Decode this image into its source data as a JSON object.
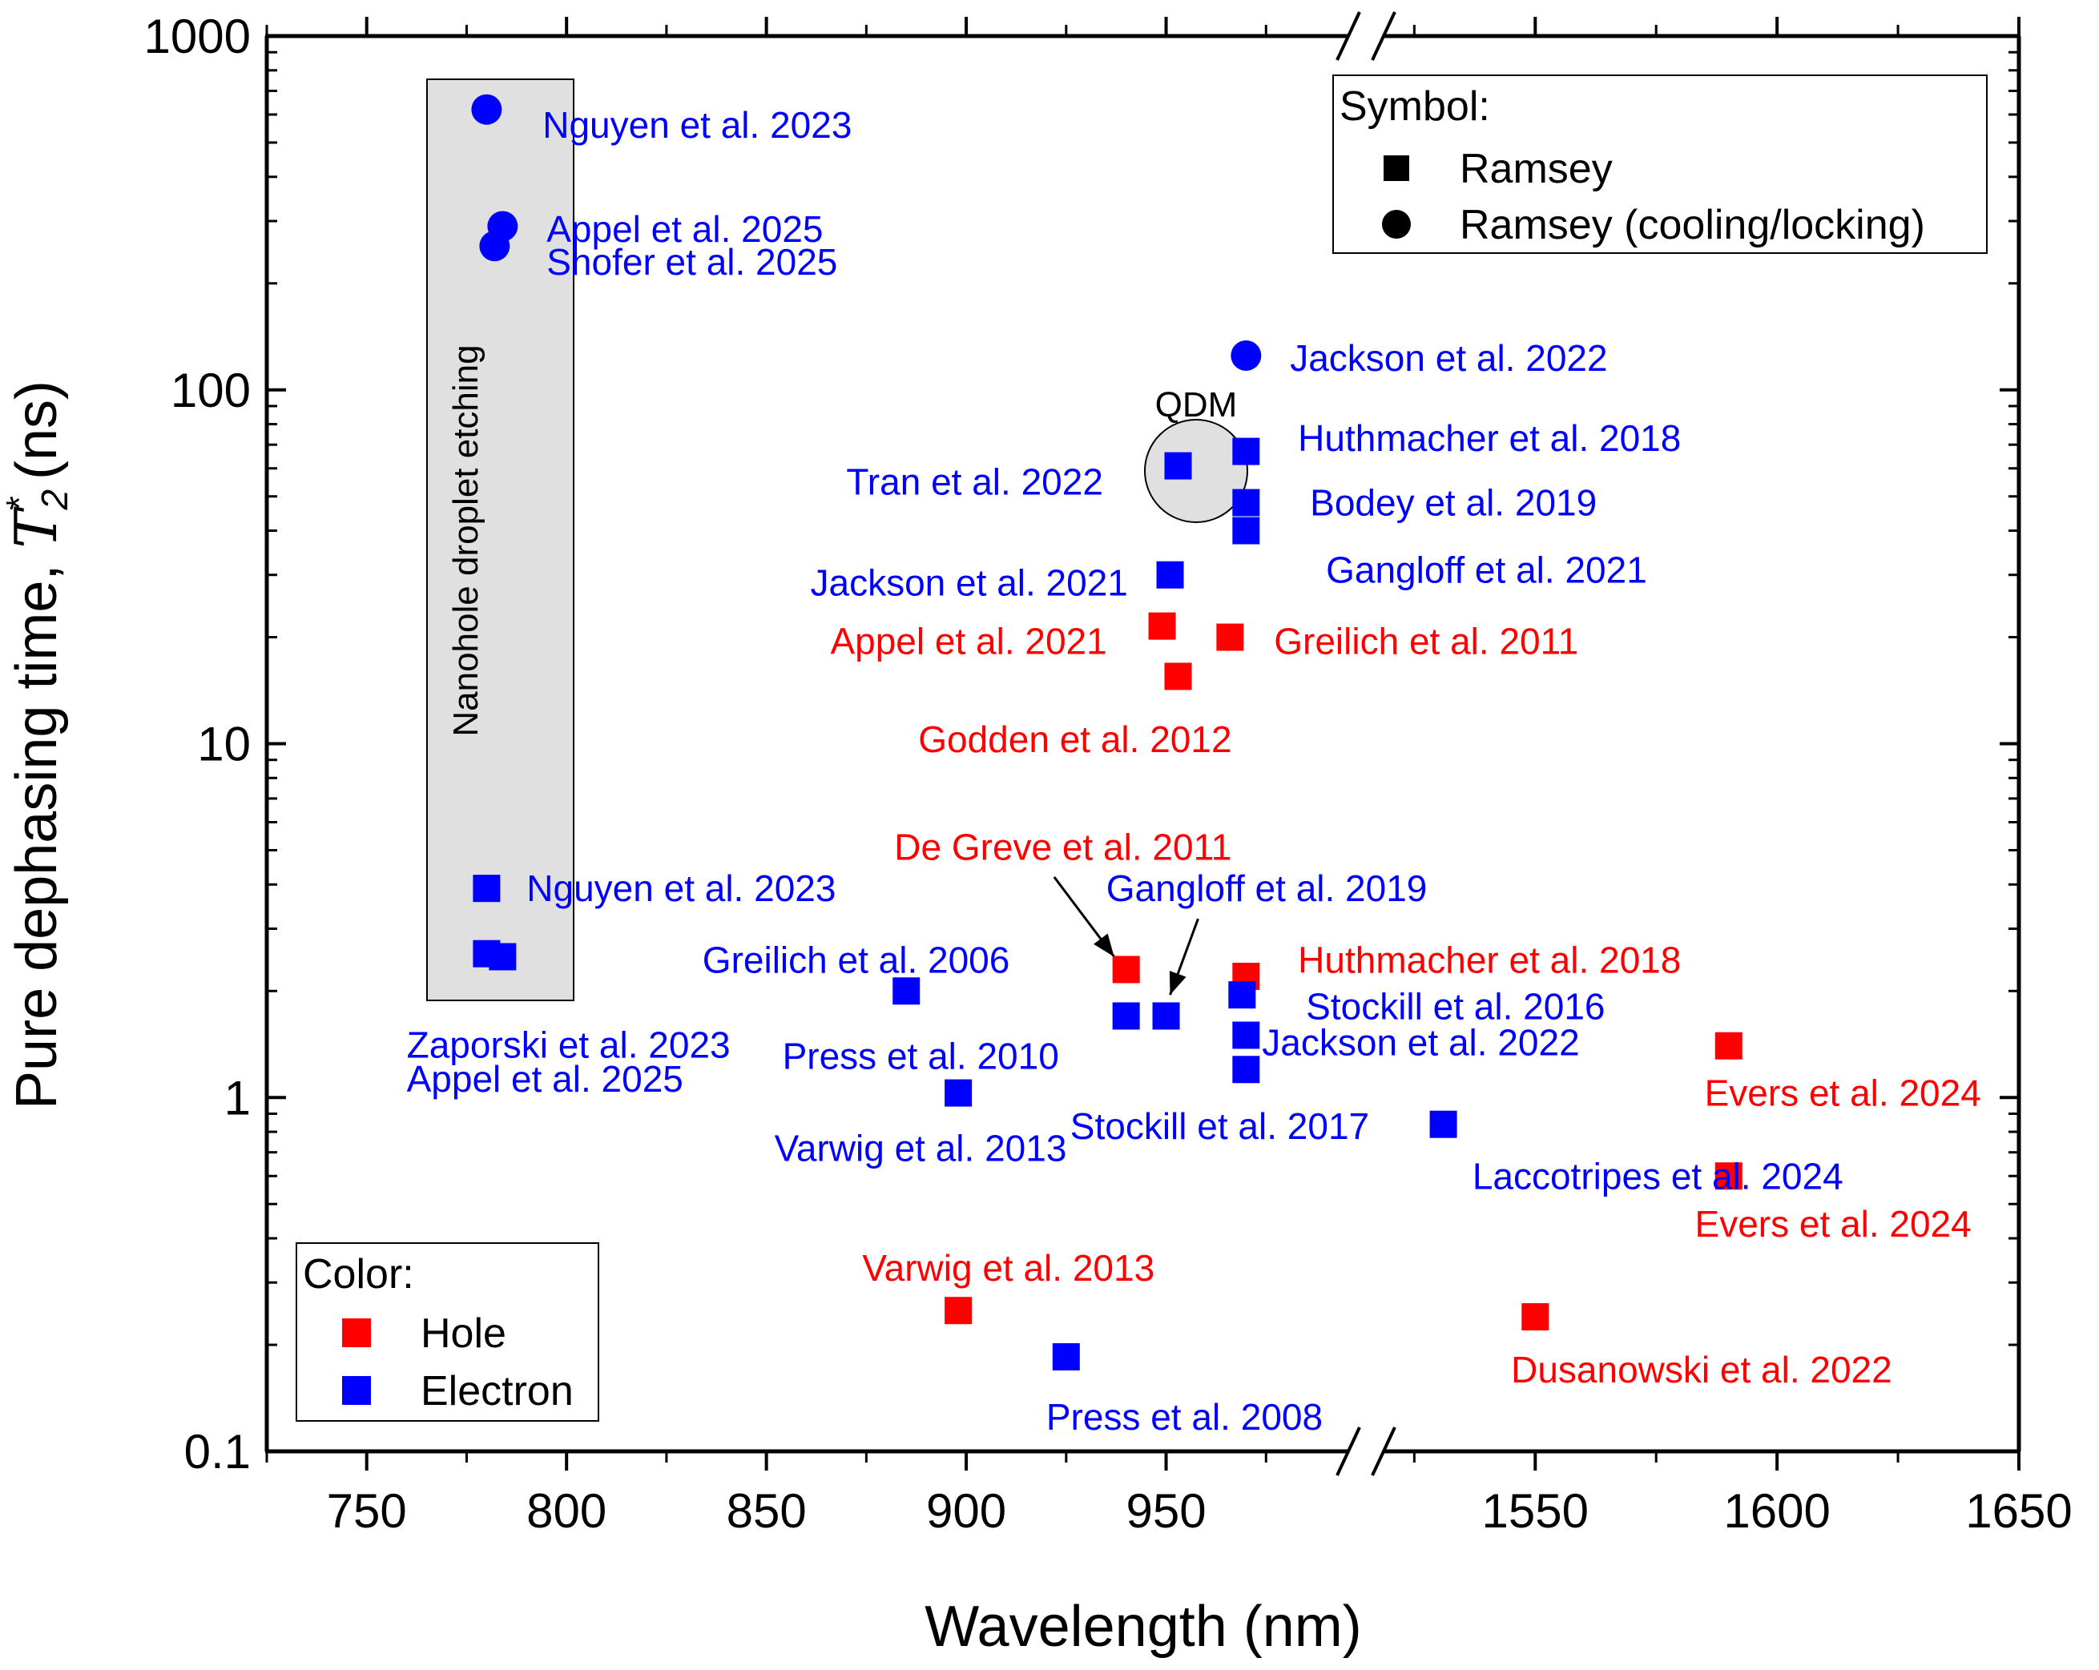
{
  "chart_data": {
    "type": "scatter",
    "xlabel": "Wavelength (nm)",
    "ylabel": "Pure dephasing time, ",
    "ylabel_symbol": "T",
    "ylabel_sub": "2",
    "ylabel_sup": "*",
    "ylabel_unit": " (ns)",
    "yscale": "log",
    "ylim": [
      0.1,
      1000
    ],
    "yticks": [
      "0.1",
      "1",
      "10",
      "100",
      "1000"
    ],
    "x_segments": [
      {
        "range": [
          725,
          1000
        ],
        "ticks": [
          "750",
          "800",
          "850",
          "900",
          "950"
        ]
      },
      {
        "range": [
          1515,
          1650
        ],
        "ticks": [
          "1550",
          "1600",
          "1650"
        ]
      }
    ],
    "colors": {
      "hole": "#ff0000",
      "electron": "#0000ff",
      "region": "#e0e0e0"
    },
    "region_label": "Nanohole droplet etching",
    "qdm_label": "QDM",
    "points": [
      {
        "x": 780,
        "y": 620,
        "carrier": "electron",
        "marker": "circle"
      },
      {
        "x": 784,
        "y": 290,
        "carrier": "electron",
        "marker": "circle"
      },
      {
        "x": 782,
        "y": 255,
        "carrier": "electron",
        "marker": "circle"
      },
      {
        "x": 780,
        "y": 3.9,
        "carrier": "electron",
        "marker": "square"
      },
      {
        "x": 780,
        "y": 2.55,
        "carrier": "electron",
        "marker": "square"
      },
      {
        "x": 784,
        "y": 2.5,
        "carrier": "electron",
        "marker": "square"
      },
      {
        "x": 970,
        "y": 125,
        "carrier": "electron",
        "marker": "circle"
      },
      {
        "x": 970,
        "y": 67,
        "carrier": "electron",
        "marker": "square"
      },
      {
        "x": 953,
        "y": 61,
        "carrier": "electron",
        "marker": "square"
      },
      {
        "x": 970,
        "y": 48,
        "carrier": "electron",
        "marker": "square"
      },
      {
        "x": 970,
        "y": 40,
        "carrier": "electron",
        "marker": "square"
      },
      {
        "x": 951,
        "y": 30,
        "carrier": "electron",
        "marker": "square"
      },
      {
        "x": 949,
        "y": 21.5,
        "carrier": "hole",
        "marker": "square"
      },
      {
        "x": 966,
        "y": 20,
        "carrier": "hole",
        "marker": "square"
      },
      {
        "x": 953,
        "y": 15.5,
        "carrier": "hole",
        "marker": "square"
      },
      {
        "x": 885,
        "y": 2.0,
        "carrier": "electron",
        "marker": "square"
      },
      {
        "x": 940,
        "y": 2.3,
        "carrier": "hole",
        "marker": "square"
      },
      {
        "x": 970,
        "y": 2.2,
        "carrier": "hole",
        "marker": "square"
      },
      {
        "x": 940,
        "y": 1.7,
        "carrier": "electron",
        "marker": "square"
      },
      {
        "x": 950,
        "y": 1.7,
        "carrier": "electron",
        "marker": "square"
      },
      {
        "x": 969,
        "y": 1.95,
        "carrier": "electron",
        "marker": "square"
      },
      {
        "x": 970,
        "y": 1.5,
        "carrier": "electron",
        "marker": "square"
      },
      {
        "x": 970,
        "y": 1.2,
        "carrier": "electron",
        "marker": "square"
      },
      {
        "x": 898,
        "y": 1.03,
        "carrier": "electron",
        "marker": "square"
      },
      {
        "x": 898,
        "y": 0.25,
        "carrier": "hole",
        "marker": "square"
      },
      {
        "x": 925,
        "y": 0.185,
        "carrier": "electron",
        "marker": "square"
      },
      {
        "x": 1531,
        "y": 0.84,
        "carrier": "electron",
        "marker": "square"
      },
      {
        "x": 1590,
        "y": 1.4,
        "carrier": "hole",
        "marker": "square"
      },
      {
        "x": 1590,
        "y": 0.6,
        "carrier": "hole",
        "marker": "square"
      },
      {
        "x": 1550,
        "y": 0.24,
        "carrier": "hole",
        "marker": "square"
      }
    ],
    "annotations": [
      {
        "text": "Nguyen et al. 2023",
        "carrier": "electron",
        "x": 794,
        "y": 560
      },
      {
        "text": "Appel et al. 2025",
        "carrier": "electron",
        "x": 795,
        "y": 285
      },
      {
        "text": "Shofer et al. 2025",
        "carrier": "electron",
        "x": 795,
        "y": 230
      },
      {
        "text": "Jackson et al. 2022",
        "carrier": "electron",
        "x": 981,
        "y": 123
      },
      {
        "text": "Huthmacher et al. 2018",
        "carrier": "electron",
        "x": 983,
        "y": 73
      },
      {
        "text": "Tran et al. 2022",
        "carrier": "electron",
        "x": 870,
        "y": 55
      },
      {
        "text": "Bodey et al. 2019",
        "carrier": "electron",
        "x": 986,
        "y": 48
      },
      {
        "text": "Jackson et al. 2021",
        "carrier": "electron",
        "x": 861,
        "y": 28.5
      },
      {
        "text": "Gangloff et al. 2021",
        "carrier": "electron",
        "x": 990,
        "y": 31
      },
      {
        "text": "Appel et al. 2021",
        "carrier": "hole",
        "x": 866,
        "y": 19.5
      },
      {
        "text": "Greilich et al. 2011",
        "carrier": "hole",
        "x": 977,
        "y": 19.5
      },
      {
        "text": "Godden et al. 2012",
        "carrier": "hole",
        "x": 888,
        "y": 10.3
      },
      {
        "text": "De Greve et al. 2011",
        "carrier": "hole",
        "x": 882,
        "y": 5.1
      },
      {
        "text": "Nguyen et al. 2023",
        "carrier": "electron",
        "x": 790,
        "y": 3.9
      },
      {
        "text": "Gangloff et al. 2019",
        "carrier": "electron",
        "x": 935,
        "y": 3.9
      },
      {
        "text": "Greilich et al. 2006",
        "carrier": "electron",
        "x": 834,
        "y": 2.45
      },
      {
        "text": "Huthmacher et al. 2018",
        "carrier": "hole",
        "x": 983,
        "y": 2.45
      },
      {
        "text": "Stockill et al. 2016",
        "carrier": "electron",
        "x": 985,
        "y": 1.81
      },
      {
        "text": "Jackson et al. 2022",
        "carrier": "electron",
        "x": 974,
        "y": 1.43
      },
      {
        "text": "Press et al. 2010",
        "carrier": "electron",
        "x": 854,
        "y": 1.31
      },
      {
        "text": "Zaporski et al. 2023",
        "carrier": "electron",
        "x": 760,
        "y": 1.41
      },
      {
        "text": "Appel et al. 2025",
        "carrier": "electron",
        "x": 760,
        "y": 1.13
      },
      {
        "text": "Evers et al. 2024",
        "carrier": "hole",
        "x": 1585,
        "y": 1.03
      },
      {
        "text": "Stockill et al. 2017",
        "carrier": "electron",
        "x": 926,
        "y": 0.83
      },
      {
        "text": "Varwig et al. 2013",
        "carrier": "electron",
        "x": 852,
        "y": 0.72
      },
      {
        "text": "Laccotripes et al. 2024",
        "carrier": "electron",
        "x": 1537,
        "y": 0.6
      },
      {
        "text": "Evers et al. 2024",
        "carrier": "hole",
        "x": 1583,
        "y": 0.44
      },
      {
        "text": "Varwig et al. 2013",
        "carrier": "hole",
        "x": 874,
        "y": 0.33
      },
      {
        "text": "Dusanowski et al. 2022",
        "carrier": "hole",
        "x": 1545,
        "y": 0.17
      },
      {
        "text": "Press et al. 2008",
        "carrier": "electron",
        "x": 920,
        "y": 0.125
      }
    ],
    "arrows": [
      {
        "from_x": 922,
        "from_y": 4.2,
        "to_x": 937,
        "to_y": 2.5
      },
      {
        "from_x": 958,
        "from_y": 3.2,
        "to_x": 951,
        "to_y": 1.95
      }
    ],
    "legend_symbol": {
      "title": "Symbol:",
      "items": [
        {
          "label": "Ramsey",
          "marker": "square"
        },
        {
          "label": "Ramsey (cooling/locking)",
          "marker": "circle"
        }
      ]
    },
    "legend_color": {
      "title": "Color:",
      "items": [
        {
          "label": "Hole",
          "carrier": "hole"
        },
        {
          "label": "Electron",
          "carrier": "electron"
        }
      ]
    }
  }
}
